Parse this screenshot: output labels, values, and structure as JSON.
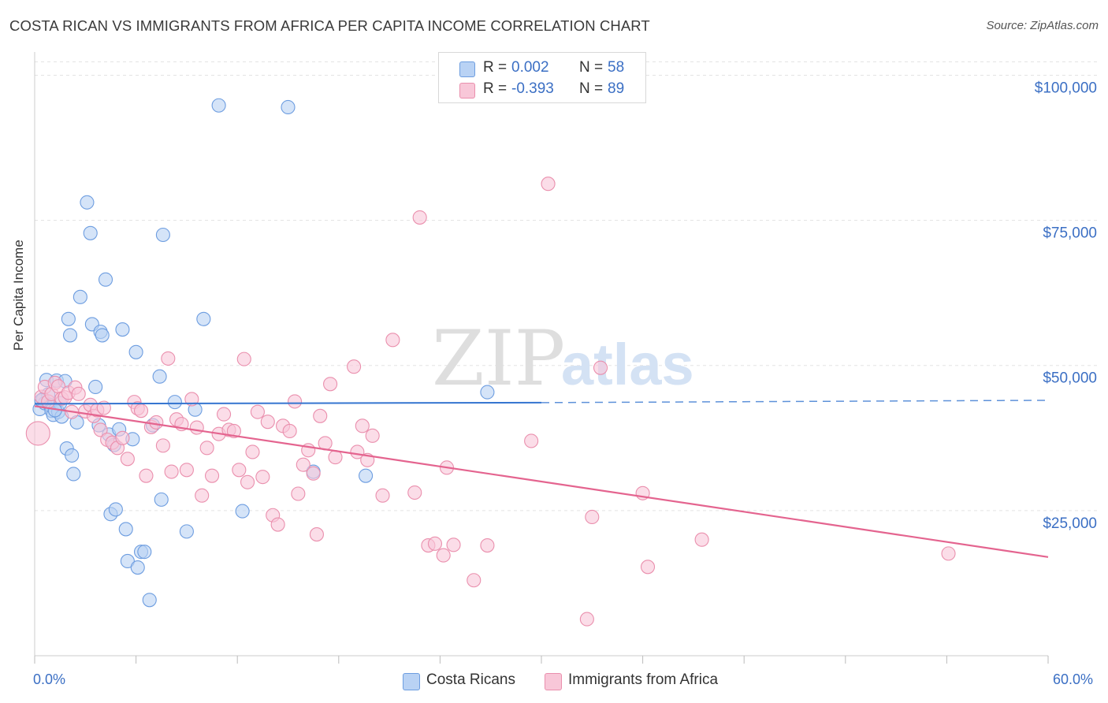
{
  "title": "COSTA RICAN VS IMMIGRANTS FROM AFRICA PER CAPITA INCOME CORRELATION CHART",
  "source": "Source: ZipAtlas.com",
  "colors": {
    "blue_fill": "#b9d2f4",
    "blue_stroke": "#6d9de0",
    "blue_line": "#3575d0",
    "pink_fill": "#f8c7d8",
    "pink_stroke": "#ea8fad",
    "pink_line": "#e4648f",
    "axis_text": "#3b6fc4",
    "grid": "#e3e3e3"
  },
  "legend_top": {
    "rows": [
      {
        "r_label": "R =",
        "r_value": "0.002",
        "n_label": "N =",
        "n_value": "58"
      },
      {
        "r_label": "R =",
        "r_value": "-0.393",
        "n_label": "N =",
        "n_value": "89"
      }
    ]
  },
  "legend_bottom": {
    "items": [
      "Costa Ricans",
      "Immigrants from Africa"
    ]
  },
  "watermark": {
    "zip": "ZIP",
    "atlas": "atlas"
  },
  "chart_data": {
    "type": "scatter",
    "title": "COSTA RICAN VS IMMIGRANTS FROM AFRICA PER CAPITA INCOME CORRELATION CHART",
    "xlabel": "",
    "ylabel": "Per Capita Income",
    "xlim": [
      0,
      60
    ],
    "ylim": [
      0,
      104000
    ],
    "x_tick_labels": [
      "0.0%",
      "60.0%"
    ],
    "y_ticks": [
      25000,
      50000,
      75000,
      100000
    ],
    "y_tick_labels": [
      "$25,000",
      "$50,000",
      "$75,000",
      "$100,000"
    ],
    "grid": true,
    "series": [
      {
        "name": "Costa Ricans",
        "R": 0.002,
        "N": 58,
        "trend": {
          "x0": 0,
          "y0": 43400,
          "x1": 30,
          "y1": 43600,
          "dashed_to_x": 60,
          "dashed_to_y": 44000
        },
        "points": [
          [
            0.3,
            42500
          ],
          [
            0.5,
            44200
          ],
          [
            0.6,
            43500
          ],
          [
            0.7,
            47500
          ],
          [
            0.8,
            45000
          ],
          [
            0.9,
            43200
          ],
          [
            1.0,
            42200
          ],
          [
            1.1,
            41500
          ],
          [
            1.3,
            47400
          ],
          [
            1.4,
            42000
          ],
          [
            1.5,
            43500
          ],
          [
            1.6,
            41200
          ],
          [
            1.8,
            47300
          ],
          [
            1.9,
            35700
          ],
          [
            2.0,
            58000
          ],
          [
            2.1,
            55200
          ],
          [
            2.2,
            34500
          ],
          [
            2.3,
            31300
          ],
          [
            2.5,
            40200
          ],
          [
            2.7,
            61800
          ],
          [
            3.1,
            78100
          ],
          [
            3.3,
            72800
          ],
          [
            3.4,
            57100
          ],
          [
            3.6,
            46300
          ],
          [
            3.8,
            39700
          ],
          [
            3.9,
            55800
          ],
          [
            4.0,
            55200
          ],
          [
            4.2,
            64800
          ],
          [
            4.4,
            38100
          ],
          [
            4.5,
            24400
          ],
          [
            4.7,
            36300
          ],
          [
            4.8,
            25200
          ],
          [
            5.0,
            39000
          ],
          [
            5.2,
            56200
          ],
          [
            5.4,
            21800
          ],
          [
            5.5,
            16300
          ],
          [
            5.8,
            37300
          ],
          [
            6.0,
            52300
          ],
          [
            6.1,
            15200
          ],
          [
            6.3,
            17900
          ],
          [
            6.5,
            17900
          ],
          [
            6.8,
            9600
          ],
          [
            7.0,
            39700
          ],
          [
            7.4,
            48100
          ],
          [
            7.5,
            26900
          ],
          [
            7.6,
            72500
          ],
          [
            8.3,
            43700
          ],
          [
            9.0,
            21400
          ],
          [
            9.5,
            42400
          ],
          [
            10.0,
            58000
          ],
          [
            10.9,
            94800
          ],
          [
            12.3,
            24900
          ],
          [
            15.0,
            94500
          ],
          [
            16.5,
            31700
          ],
          [
            19.6,
            31000
          ],
          [
            26.8,
            45400
          ],
          [
            0.4,
            44000
          ],
          [
            1.2,
            42300
          ]
        ]
      },
      {
        "name": "Immigrants from Africa",
        "R": -0.393,
        "N": 89,
        "trend": {
          "x0": 0,
          "y0": 43000,
          "x1": 60,
          "y1": 17000
        },
        "points": [
          [
            0.2,
            38300
          ],
          [
            0.4,
            44600
          ],
          [
            0.6,
            46300
          ],
          [
            0.8,
            43800
          ],
          [
            1.0,
            45100
          ],
          [
            1.2,
            47000
          ],
          [
            1.4,
            46400
          ],
          [
            1.6,
            44300
          ],
          [
            1.8,
            44500
          ],
          [
            2.0,
            45300
          ],
          [
            2.2,
            42000
          ],
          [
            2.4,
            46200
          ],
          [
            2.6,
            45100
          ],
          [
            3.0,
            42100
          ],
          [
            3.3,
            43200
          ],
          [
            3.5,
            41300
          ],
          [
            3.7,
            42300
          ],
          [
            3.9,
            38900
          ],
          [
            4.1,
            42700
          ],
          [
            4.3,
            37200
          ],
          [
            4.6,
            36700
          ],
          [
            4.9,
            35800
          ],
          [
            5.2,
            37500
          ],
          [
            5.5,
            33900
          ],
          [
            5.9,
            43700
          ],
          [
            6.1,
            42600
          ],
          [
            6.3,
            42200
          ],
          [
            6.6,
            31000
          ],
          [
            6.9,
            39400
          ],
          [
            7.2,
            40200
          ],
          [
            7.6,
            36200
          ],
          [
            7.9,
            51200
          ],
          [
            8.1,
            31700
          ],
          [
            8.4,
            40700
          ],
          [
            8.7,
            39900
          ],
          [
            9.0,
            32000
          ],
          [
            9.3,
            44200
          ],
          [
            9.6,
            39300
          ],
          [
            9.9,
            27600
          ],
          [
            10.2,
            35800
          ],
          [
            10.5,
            31000
          ],
          [
            10.9,
            38200
          ],
          [
            11.2,
            41600
          ],
          [
            11.5,
            38900
          ],
          [
            11.8,
            38700
          ],
          [
            12.1,
            32000
          ],
          [
            12.4,
            51100
          ],
          [
            12.6,
            29900
          ],
          [
            12.9,
            35100
          ],
          [
            13.2,
            42000
          ],
          [
            13.5,
            30800
          ],
          [
            13.8,
            40300
          ],
          [
            14.1,
            24200
          ],
          [
            14.4,
            22600
          ],
          [
            14.7,
            39600
          ],
          [
            15.1,
            38700
          ],
          [
            15.4,
            43800
          ],
          [
            15.6,
            27900
          ],
          [
            15.9,
            32900
          ],
          [
            16.2,
            35400
          ],
          [
            16.5,
            31400
          ],
          [
            16.7,
            20900
          ],
          [
            16.9,
            41300
          ],
          [
            17.2,
            36600
          ],
          [
            17.5,
            46800
          ],
          [
            17.8,
            34200
          ],
          [
            18.9,
            49800
          ],
          [
            19.1,
            35100
          ],
          [
            19.4,
            39600
          ],
          [
            19.7,
            33700
          ],
          [
            20.0,
            37900
          ],
          [
            20.6,
            27600
          ],
          [
            21.2,
            54400
          ],
          [
            22.5,
            28100
          ],
          [
            22.8,
            75500
          ],
          [
            23.3,
            19000
          ],
          [
            23.7,
            19300
          ],
          [
            24.2,
            17300
          ],
          [
            24.4,
            32400
          ],
          [
            24.8,
            19100
          ],
          [
            26.0,
            13000
          ],
          [
            26.8,
            19000
          ],
          [
            29.4,
            37000
          ],
          [
            30.4,
            81300
          ],
          [
            32.7,
            6300
          ],
          [
            33.0,
            23900
          ],
          [
            33.5,
            49600
          ],
          [
            36.0,
            28000
          ],
          [
            36.3,
            15300
          ],
          [
            39.5,
            20000
          ],
          [
            54.1,
            17600
          ]
        ]
      }
    ]
  }
}
